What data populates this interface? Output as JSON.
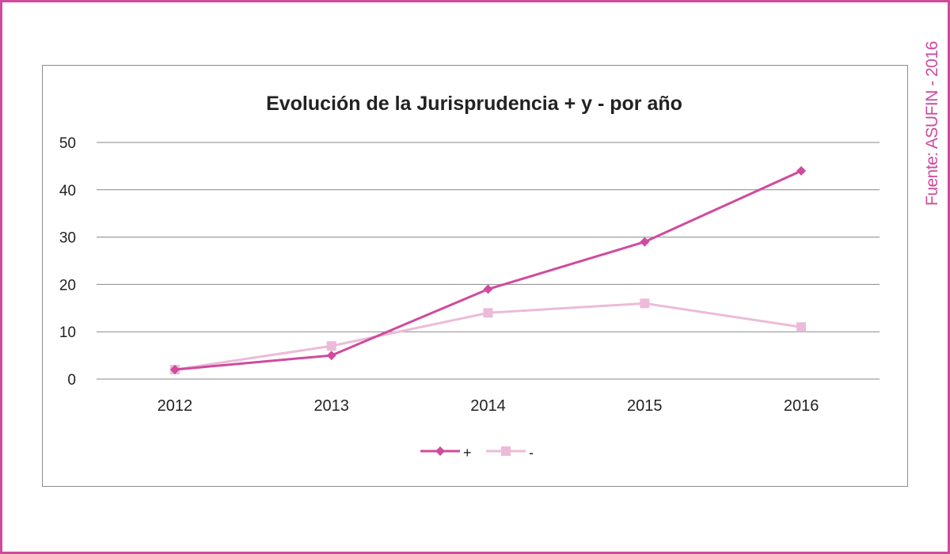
{
  "source_note": "Fuente: ASUFIN - 2016",
  "colors": {
    "frame": "#d04a9e",
    "series_plus": "#d04a9e",
    "series_minus": "#ecbbd9",
    "grid": "#888888",
    "text": "#222222"
  },
  "chart_data": {
    "type": "line",
    "title": "Evolución de la Jurisprudencia + y - por año",
    "xlabel": "",
    "ylabel": "",
    "categories": [
      "2012",
      "2013",
      "2014",
      "2015",
      "2016"
    ],
    "ylim": [
      0,
      50
    ],
    "yticks": [
      "0",
      "10",
      "20",
      "30",
      "40",
      "50"
    ],
    "grid": true,
    "legend_position": "bottom",
    "series": [
      {
        "name": "+",
        "marker": "diamond",
        "values": [
          2,
          5,
          19,
          29,
          44
        ]
      },
      {
        "name": "-",
        "marker": "square",
        "values": [
          2,
          7,
          14,
          16,
          11
        ]
      }
    ]
  }
}
